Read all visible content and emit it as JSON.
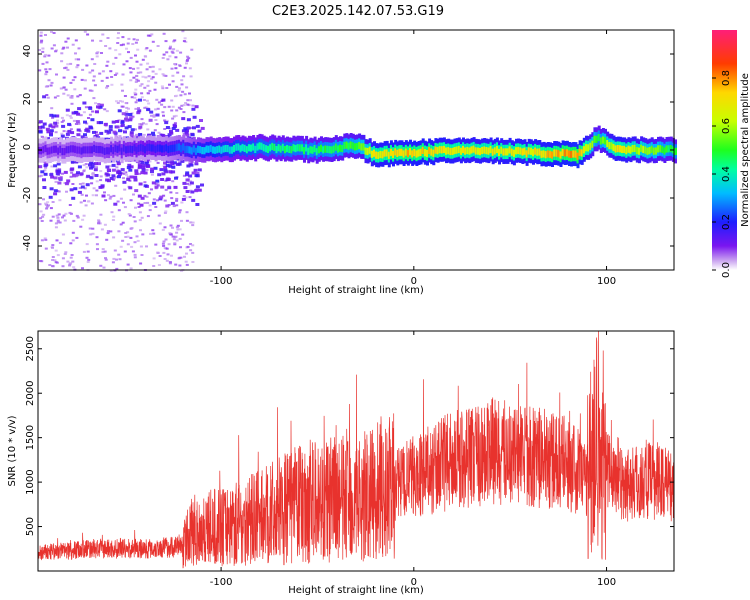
{
  "title": "C2E3.2025.142.07.53.G19",
  "chart_data": [
    {
      "type": "heatmap",
      "xlabel": "Height of straight line (km)",
      "ylabel": "Frequency (Hz)",
      "xlim": [
        -195,
        135
      ],
      "ylim": [
        -50,
        50
      ],
      "xticks": [
        -100,
        0,
        100
      ],
      "yticks": [
        -40,
        -20,
        0,
        20,
        40
      ],
      "colorbar": {
        "label": "Normalized spectral amplitude",
        "range": [
          0.0,
          1.0
        ],
        "ticks": [
          "0.0",
          "0.2",
          "0.4",
          "0.6",
          "0.8"
        ]
      },
      "trace": [
        {
          "x": -195,
          "f": 0,
          "amp": 0.12
        },
        {
          "x": -160,
          "f": 0,
          "amp": 0.15
        },
        {
          "x": -130,
          "f": 1,
          "amp": 0.2
        },
        {
          "x": -110,
          "f": 0,
          "amp": 0.35
        },
        {
          "x": -80,
          "f": 1,
          "amp": 0.45
        },
        {
          "x": -50,
          "f": 0,
          "amp": 0.5
        },
        {
          "x": -30,
          "f": 2,
          "amp": 0.55
        },
        {
          "x": -20,
          "f": -2,
          "amp": 0.75
        },
        {
          "x": 0,
          "f": -1,
          "amp": 0.8
        },
        {
          "x": 30,
          "f": 0,
          "amp": 0.72
        },
        {
          "x": 60,
          "f": -1,
          "amp": 0.75
        },
        {
          "x": 85,
          "f": -2,
          "amp": 0.85
        },
        {
          "x": 95,
          "f": 5,
          "amp": 0.5
        },
        {
          "x": 105,
          "f": 0,
          "amp": 0.75
        },
        {
          "x": 135,
          "f": 0,
          "amp": 0.5
        }
      ]
    },
    {
      "type": "line",
      "xlabel": "Height of straight line (km)",
      "ylabel": "SNR (10 * v/v)",
      "xlim": [
        -195,
        135
      ],
      "ylim": [
        0,
        2700
      ],
      "xticks": [
        -100,
        0,
        100
      ],
      "yticks": [
        500,
        1000,
        1500,
        2000,
        2500
      ],
      "series": [
        {
          "color": "#e8322d",
          "x": [
            -195,
            -170,
            -140,
            -120,
            -115,
            -100,
            -80,
            -60,
            -40,
            -20,
            0,
            20,
            40,
            60,
            80,
            90,
            95,
            100,
            110,
            135
          ],
          "values": [
            200,
            250,
            250,
            280,
            450,
            500,
            600,
            750,
            800,
            850,
            1050,
            1250,
            1350,
            1300,
            1200,
            1050,
            1700,
            1100,
            1000,
            1000
          ]
        }
      ]
    }
  ]
}
